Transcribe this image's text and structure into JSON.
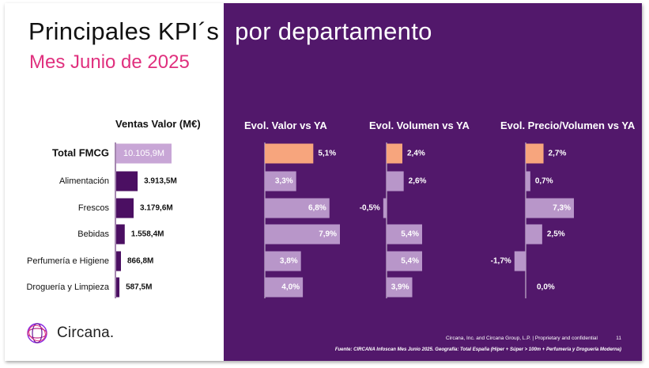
{
  "title": {
    "part1": "Principales KPI´s",
    "part2": "por departamento",
    "subtitle": "Mes Junio de 2025"
  },
  "colors": {
    "purple_bg": "#52186b",
    "dark_bar": "#4b0f62",
    "light_bar": "#b896c9",
    "highlight_bar": "#f7a57d",
    "pink": "#e0307e",
    "total_bar": "#c8a6d6"
  },
  "chart_data": [
    {
      "type": "bar",
      "orientation": "horizontal",
      "title": "Ventas Valor (M€)",
      "categories": [
        "Total FMCG",
        "Alimentación",
        "Frescos",
        "Bebidas",
        "Perfumería e Higiene",
        "Droguería y Limpieza"
      ],
      "values": [
        10105.9,
        3913.5,
        3179.6,
        1558.4,
        866.8,
        587.5
      ],
      "labels": [
        "10.105,9M",
        "3.913,5M",
        "3.179,6M",
        "1.558,4M",
        "866,8M",
        "587,5M"
      ]
    },
    {
      "type": "bar",
      "orientation": "horizontal",
      "title": "Evol. Valor vs YA",
      "categories": [
        "Total FMCG",
        "Alimentación",
        "Frescos",
        "Bebidas",
        "Perfumería e Higiene",
        "Droguería y Limpieza"
      ],
      "values": [
        5.1,
        3.3,
        6.8,
        7.9,
        3.8,
        4.0
      ],
      "labels": [
        "5,1%",
        "3,3%",
        "6,8%",
        "7,9%",
        "3,8%",
        "4,0%"
      ]
    },
    {
      "type": "bar",
      "orientation": "horizontal",
      "title": "Evol. Volumen vs YA",
      "categories": [
        "Total FMCG",
        "Alimentación",
        "Frescos",
        "Bebidas",
        "Perfumería e Higiene",
        "Droguería y Limpieza"
      ],
      "values": [
        2.4,
        2.6,
        -0.5,
        5.4,
        5.4,
        3.9
      ],
      "labels": [
        "2,4%",
        "2,6%",
        "-0,5%",
        "5,4%",
        "5,4%",
        "3,9%"
      ]
    },
    {
      "type": "bar",
      "orientation": "horizontal",
      "title": "Evol. Precio/Volumen vs YA",
      "categories": [
        "Total FMCG",
        "Alimentación",
        "Frescos",
        "Bebidas",
        "Perfumería e Higiene",
        "Droguería y Limpieza"
      ],
      "values": [
        2.7,
        0.7,
        7.3,
        2.5,
        -1.7,
        0.0
      ],
      "labels": [
        "2,7%",
        "0,7%",
        "7,3%",
        "2,5%",
        "-1,7%",
        "0,0%"
      ]
    }
  ],
  "logo": {
    "text": "Circana."
  },
  "footer": {
    "copyright": "Circana, Inc. and Circana Group, L.P. | Proprietary and confidential",
    "page": "11",
    "source": "Fuente: CIRCANA Infoscan Mes Junio 2025. Geografía: Total España (Híper + Súper > 100m + Perfumería y Droguería Moderna)"
  }
}
